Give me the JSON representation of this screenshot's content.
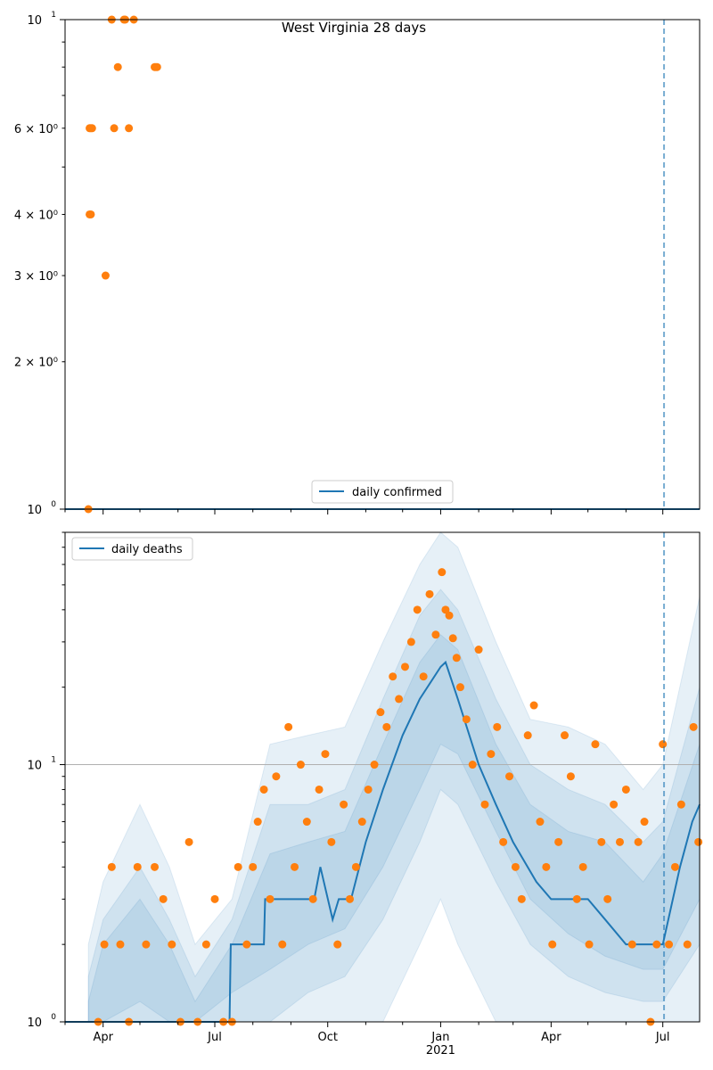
{
  "figure": {
    "title": "West Virginia 28 days"
  },
  "colors": {
    "line": "#1f77b4",
    "points": "#ff7f0e",
    "band": "#1f77b4",
    "grid": "#b0b0b0"
  },
  "chart_data": [
    {
      "type": "line",
      "title": "West Virginia 28 days",
      "yscale": "log",
      "ylim": [
        1,
        10
      ],
      "y_major_ticks": [
        1,
        10
      ],
      "y_minor_ticks": [
        {
          "value": 2,
          "label": "2 × 10⁰"
        },
        {
          "value": 3,
          "label": "3 × 10⁰"
        },
        {
          "value": 4,
          "label": "4 × 10⁰"
        },
        {
          "value": 6,
          "label": "6 × 10⁰"
        }
      ],
      "y_unlabeled_minor": [
        5,
        7,
        8,
        9
      ],
      "legend": {
        "entries": [
          "daily confirmed"
        ],
        "placement": "lower center"
      },
      "series": [
        {
          "name": "daily confirmed",
          "kind": "line",
          "x": [
            "2020-03-01",
            "2021-07-31"
          ],
          "y": [
            1,
            1
          ]
        },
        {
          "kind": "points",
          "x": [
            "2020-03-20",
            "2020-03-21",
            "2020-03-21",
            "2020-03-22",
            "2020-03-22",
            "2020-03-23",
            "2020-04-03",
            "2020-04-08",
            "2020-04-10",
            "2020-04-13",
            "2020-04-18",
            "2020-04-19",
            "2020-04-22",
            "2020-04-26",
            "2020-05-13",
            "2020-05-14",
            "2020-05-15"
          ],
          "y": [
            1,
            6,
            4,
            6,
            4,
            6,
            3,
            10,
            6,
            8,
            10,
            10,
            6,
            10,
            8,
            8,
            8
          ]
        }
      ],
      "vline": "2021-07-02",
      "xlim": [
        "2020-03-01",
        "2021-07-31"
      ]
    },
    {
      "type": "line",
      "yscale": "log",
      "ylim": [
        1,
        80
      ],
      "y_major_ticks": [
        1,
        10
      ],
      "hgrid": [
        10
      ],
      "legend": {
        "entries": [
          "daily deaths"
        ],
        "placement": "upper left"
      },
      "x_ticks": [
        {
          "date": "2020-04-01",
          "label": "Apr"
        },
        {
          "date": "2020-07-01",
          "label": "Jul"
        },
        {
          "date": "2020-10-01",
          "label": "Oct"
        },
        {
          "date": "2021-01-01",
          "label": "Jan",
          "sublabel": "2021"
        },
        {
          "date": "2021-04-01",
          "label": "Apr"
        },
        {
          "date": "2021-07-01",
          "label": "Jul"
        }
      ],
      "x_minor_ticks": [
        "2020-03-01",
        "2020-05-01",
        "2020-06-01",
        "2020-08-01",
        "2020-09-01",
        "2020-11-01",
        "2020-12-01",
        "2021-02-01",
        "2021-03-01",
        "2021-05-01",
        "2021-06-01"
      ],
      "xlim": [
        "2020-03-01",
        "2021-07-31"
      ],
      "vline": "2021-07-02",
      "daily_deaths_trend": {
        "x": [
          "2020-03-01",
          "2020-07-13",
          "2020-07-14",
          "2020-08-10",
          "2020-08-11",
          "2020-09-20",
          "2020-09-25",
          "2020-10-05",
          "2020-10-10",
          "2020-10-20",
          "2020-11-01",
          "2020-11-15",
          "2020-12-01",
          "2020-12-15",
          "2021-01-01",
          "2021-01-05",
          "2021-01-15",
          "2021-02-01",
          "2021-02-15",
          "2021-03-01",
          "2021-03-20",
          "2021-04-01",
          "2021-05-01",
          "2021-05-15",
          "2021-06-01",
          "2021-07-01",
          "2021-07-15",
          "2021-07-25",
          "2021-07-31"
        ],
        "y": [
          1,
          1,
          2,
          2,
          3,
          3,
          4,
          2.5,
          3,
          3,
          5,
          8,
          13,
          18,
          24,
          25,
          18,
          10,
          7,
          5,
          3.5,
          3,
          3,
          2.5,
          2,
          2,
          4,
          6,
          7
        ]
      },
      "bands": [
        {
          "x": [
            "2020-03-20",
            "2020-04-01",
            "2020-05-01",
            "2020-05-25",
            "2020-06-15",
            "2020-07-15",
            "2020-08-15",
            "2020-09-15",
            "2020-10-15",
            "2020-11-15",
            "2020-12-15",
            "2021-01-01",
            "2021-01-15",
            "2021-02-15",
            "2021-03-15",
            "2021-04-15",
            "2021-05-15",
            "2021-06-15",
            "2021-07-01",
            "2021-07-31"
          ],
          "lower": [
            1,
            1,
            1,
            1,
            1,
            1,
            1,
            1,
            1,
            1,
            2,
            3,
            2,
            1,
            1,
            1,
            1,
            1,
            1,
            1
          ],
          "upper": [
            2,
            3.5,
            7,
            4,
            2,
            3,
            12,
            13,
            14,
            30,
            60,
            80,
            70,
            30,
            15,
            14,
            12,
            8,
            10,
            45
          ]
        },
        {
          "x": [
            "2020-03-20",
            "2020-04-01",
            "2020-05-01",
            "2020-05-25",
            "2020-06-15",
            "2020-07-15",
            "2020-08-15",
            "2020-09-15",
            "2020-10-15",
            "2020-11-15",
            "2020-12-15",
            "2021-01-01",
            "2021-01-15",
            "2021-02-15",
            "2021-03-15",
            "2021-04-15",
            "2021-05-15",
            "2021-06-15",
            "2021-07-01",
            "2021-07-31"
          ],
          "lower": [
            1,
            1,
            1,
            1,
            1,
            1,
            1,
            1.3,
            1.5,
            2.5,
            5,
            8,
            7,
            3.5,
            2,
            1.5,
            1.3,
            1.2,
            1.2,
            2
          ],
          "upper": [
            1.5,
            2.5,
            4,
            2.5,
            1.5,
            2.5,
            7,
            7,
            8,
            18,
            38,
            48,
            40,
            18,
            10,
            8,
            7,
            5,
            6,
            20
          ]
        },
        {
          "x": [
            "2020-03-20",
            "2020-04-01",
            "2020-05-01",
            "2020-05-25",
            "2020-06-15",
            "2020-07-15",
            "2020-08-15",
            "2020-09-15",
            "2020-10-15",
            "2020-11-15",
            "2020-12-15",
            "2021-01-01",
            "2021-01-15",
            "2021-02-15",
            "2021-03-15",
            "2021-04-15",
            "2021-05-15",
            "2021-06-15",
            "2021-07-01",
            "2021-07-31"
          ],
          "lower": [
            1,
            1,
            1.2,
            1,
            1,
            1.3,
            1.6,
            2,
            2.3,
            4,
            8,
            12,
            11,
            5.5,
            3,
            2.2,
            1.8,
            1.6,
            1.6,
            3
          ],
          "upper": [
            1.2,
            2,
            3,
            2,
            1.2,
            2,
            4.5,
            5,
            5.5,
            12,
            25,
            32,
            28,
            12,
            7,
            5.5,
            5,
            3.5,
            4.5,
            12
          ]
        }
      ],
      "points": {
        "x": [
          "2020-03-28",
          "2020-04-02",
          "2020-04-08",
          "2020-04-15",
          "2020-04-22",
          "2020-04-29",
          "2020-05-06",
          "2020-05-13",
          "2020-05-20",
          "2020-05-27",
          "2020-06-03",
          "2020-06-10",
          "2020-06-17",
          "2020-06-24",
          "2020-07-01",
          "2020-07-08",
          "2020-07-15",
          "2020-07-20",
          "2020-07-27",
          "2020-08-01",
          "2020-08-05",
          "2020-08-10",
          "2020-08-15",
          "2020-08-20",
          "2020-08-25",
          "2020-08-30",
          "2020-09-04",
          "2020-09-09",
          "2020-09-14",
          "2020-09-19",
          "2020-09-24",
          "2020-09-29",
          "2020-10-04",
          "2020-10-09",
          "2020-10-14",
          "2020-10-19",
          "2020-10-24",
          "2020-10-29",
          "2020-11-03",
          "2020-11-08",
          "2020-11-13",
          "2020-11-18",
          "2020-11-23",
          "2020-11-28",
          "2020-12-03",
          "2020-12-08",
          "2020-12-13",
          "2020-12-18",
          "2020-12-23",
          "2020-12-28",
          "2021-01-02",
          "2021-01-05",
          "2021-01-08",
          "2021-01-11",
          "2021-01-14",
          "2021-01-17",
          "2021-01-22",
          "2021-01-27",
          "2021-02-01",
          "2021-02-06",
          "2021-02-11",
          "2021-02-16",
          "2021-02-21",
          "2021-02-26",
          "2021-03-03",
          "2021-03-08",
          "2021-03-13",
          "2021-03-18",
          "2021-03-23",
          "2021-03-28",
          "2021-04-02",
          "2021-04-07",
          "2021-04-12",
          "2021-04-17",
          "2021-04-22",
          "2021-04-27",
          "2021-05-02",
          "2021-05-07",
          "2021-05-12",
          "2021-05-17",
          "2021-05-22",
          "2021-05-27",
          "2021-06-01",
          "2021-06-06",
          "2021-06-11",
          "2021-06-16",
          "2021-06-21",
          "2021-06-26",
          "2021-07-01",
          "2021-07-06",
          "2021-07-11",
          "2021-07-16",
          "2021-07-21",
          "2021-07-26",
          "2021-07-30"
        ],
        "y": [
          1,
          2,
          4,
          2,
          1,
          4,
          2,
          4,
          3,
          2,
          1,
          5,
          1,
          2,
          3,
          1,
          1,
          4,
          2,
          4,
          6,
          8,
          3,
          9,
          2,
          14,
          4,
          10,
          6,
          3,
          8,
          11,
          5,
          2,
          7,
          3,
          4,
          6,
          8,
          10,
          16,
          14,
          22,
          18,
          24,
          30,
          40,
          22,
          46,
          32,
          56,
          40,
          38,
          31,
          26,
          20,
          15,
          10,
          28,
          7,
          11,
          14,
          5,
          9,
          4,
          3,
          13,
          17,
          6,
          4,
          2,
          5,
          13,
          9,
          3,
          4,
          2,
          12,
          5,
          3,
          7,
          5,
          8,
          2,
          5,
          6,
          1,
          2,
          12,
          2,
          4,
          7,
          2,
          14,
          5
        ]
      }
    }
  ]
}
